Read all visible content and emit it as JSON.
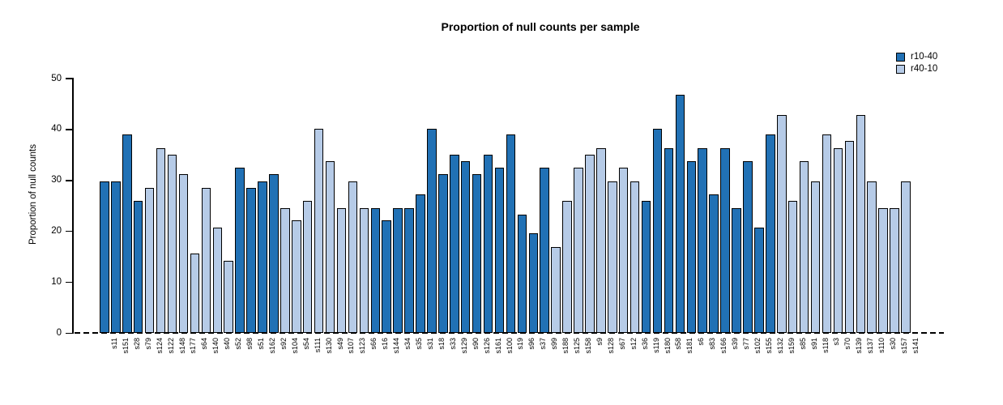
{
  "title": "Proportion of null counts per sample",
  "y_axis": {
    "label": "Proportion of null counts",
    "ticks": [
      0,
      10,
      20,
      30,
      40,
      50
    ]
  },
  "legend": [
    {
      "label": "r10-40",
      "color": "#2171b5"
    },
    {
      "label": "r40-10",
      "color": "#b6cbe7"
    }
  ],
  "chart_data": {
    "type": "bar",
    "title": "Proportion of null counts per sample",
    "xlabel": "",
    "ylabel": "Proportion of null counts",
    "ylim": [
      0,
      50
    ],
    "grid": false,
    "legend_position": "top-right",
    "baseline_style": "dashed",
    "series": [
      {
        "name": "r10-40",
        "color": "#2171b5"
      },
      {
        "name": "r40-10",
        "color": "#b6cbe7"
      }
    ],
    "samples": [
      {
        "label": "s11",
        "value": 29.8,
        "group": "r10-40"
      },
      {
        "label": "s151",
        "value": 29.8,
        "group": "r10-40"
      },
      {
        "label": "s28",
        "value": 39.0,
        "group": "r10-40"
      },
      {
        "label": "s79",
        "value": 26.0,
        "group": "r10-40"
      },
      {
        "label": "s124",
        "value": 28.6,
        "group": "r40-10"
      },
      {
        "label": "s122",
        "value": 36.4,
        "group": "r40-10"
      },
      {
        "label": "s148",
        "value": 35.0,
        "group": "r40-10"
      },
      {
        "label": "s177",
        "value": 31.2,
        "group": "r40-10"
      },
      {
        "label": "s64",
        "value": 15.6,
        "group": "r40-10"
      },
      {
        "label": "s140",
        "value": 28.6,
        "group": "r40-10"
      },
      {
        "label": "s40",
        "value": 20.8,
        "group": "r40-10"
      },
      {
        "label": "s52",
        "value": 14.3,
        "group": "r40-10"
      },
      {
        "label": "s98",
        "value": 32.5,
        "group": "r10-40"
      },
      {
        "label": "s51",
        "value": 28.6,
        "group": "r10-40"
      },
      {
        "label": "s162",
        "value": 29.8,
        "group": "r10-40"
      },
      {
        "label": "s92",
        "value": 31.2,
        "group": "r10-40"
      },
      {
        "label": "s104",
        "value": 24.5,
        "group": "r40-10"
      },
      {
        "label": "s54",
        "value": 22.1,
        "group": "r40-10"
      },
      {
        "label": "s111",
        "value": 26.0,
        "group": "r40-10"
      },
      {
        "label": "s130",
        "value": 40.2,
        "group": "r40-10"
      },
      {
        "label": "s49",
        "value": 33.8,
        "group": "r40-10"
      },
      {
        "label": "s107",
        "value": 24.5,
        "group": "r40-10"
      },
      {
        "label": "s123",
        "value": 29.8,
        "group": "r40-10"
      },
      {
        "label": "s66",
        "value": 24.5,
        "group": "r40-10"
      },
      {
        "label": "s16",
        "value": 24.5,
        "group": "r10-40"
      },
      {
        "label": "s144",
        "value": 22.1,
        "group": "r10-40"
      },
      {
        "label": "s34",
        "value": 24.5,
        "group": "r10-40"
      },
      {
        "label": "s35",
        "value": 24.5,
        "group": "r10-40"
      },
      {
        "label": "s31",
        "value": 27.3,
        "group": "r10-40"
      },
      {
        "label": "s18",
        "value": 40.2,
        "group": "r10-40"
      },
      {
        "label": "s33",
        "value": 31.2,
        "group": "r10-40"
      },
      {
        "label": "s129",
        "value": 35.0,
        "group": "r10-40"
      },
      {
        "label": "s90",
        "value": 33.8,
        "group": "r10-40"
      },
      {
        "label": "s126",
        "value": 31.2,
        "group": "r10-40"
      },
      {
        "label": "s161",
        "value": 35.0,
        "group": "r10-40"
      },
      {
        "label": "s100",
        "value": 32.5,
        "group": "r10-40"
      },
      {
        "label": "s19",
        "value": 39.0,
        "group": "r10-40"
      },
      {
        "label": "s96",
        "value": 23.3,
        "group": "r10-40"
      },
      {
        "label": "s37",
        "value": 19.6,
        "group": "r10-40"
      },
      {
        "label": "s99",
        "value": 32.5,
        "group": "r10-40"
      },
      {
        "label": "s188",
        "value": 16.9,
        "group": "r40-10"
      },
      {
        "label": "s125",
        "value": 26.0,
        "group": "r40-10"
      },
      {
        "label": "s158",
        "value": 32.5,
        "group": "r40-10"
      },
      {
        "label": "s9",
        "value": 35.0,
        "group": "r40-10"
      },
      {
        "label": "s128",
        "value": 36.4,
        "group": "r40-10"
      },
      {
        "label": "s67",
        "value": 29.8,
        "group": "r40-10"
      },
      {
        "label": "s12",
        "value": 32.5,
        "group": "r40-10"
      },
      {
        "label": "s36",
        "value": 29.8,
        "group": "r40-10"
      },
      {
        "label": "s119",
        "value": 26.0,
        "group": "r10-40"
      },
      {
        "label": "s180",
        "value": 40.2,
        "group": "r10-40"
      },
      {
        "label": "s58",
        "value": 36.4,
        "group": "r10-40"
      },
      {
        "label": "s181",
        "value": 46.8,
        "group": "r10-40"
      },
      {
        "label": "s6",
        "value": 33.8,
        "group": "r10-40"
      },
      {
        "label": "s83",
        "value": 36.4,
        "group": "r10-40"
      },
      {
        "label": "s166",
        "value": 27.3,
        "group": "r10-40"
      },
      {
        "label": "s39",
        "value": 36.4,
        "group": "r10-40"
      },
      {
        "label": "s77",
        "value": 24.5,
        "group": "r10-40"
      },
      {
        "label": "s102",
        "value": 33.8,
        "group": "r10-40"
      },
      {
        "label": "s155",
        "value": 20.8,
        "group": "r10-40"
      },
      {
        "label": "s132",
        "value": 39.0,
        "group": "r10-40"
      },
      {
        "label": "s159",
        "value": 42.8,
        "group": "r40-10"
      },
      {
        "label": "s85",
        "value": 26.0,
        "group": "r40-10"
      },
      {
        "label": "s91",
        "value": 33.8,
        "group": "r40-10"
      },
      {
        "label": "s118",
        "value": 29.8,
        "group": "r40-10"
      },
      {
        "label": "s3",
        "value": 39.0,
        "group": "r40-10"
      },
      {
        "label": "s70",
        "value": 36.4,
        "group": "r40-10"
      },
      {
        "label": "s139",
        "value": 37.7,
        "group": "r40-10"
      },
      {
        "label": "s137",
        "value": 42.8,
        "group": "r40-10"
      },
      {
        "label": "s110",
        "value": 29.8,
        "group": "r40-10"
      },
      {
        "label": "s30",
        "value": 24.5,
        "group": "r40-10"
      },
      {
        "label": "s157",
        "value": 24.5,
        "group": "r40-10"
      },
      {
        "label": "s141",
        "value": 29.8,
        "group": "r40-10"
      }
    ]
  }
}
